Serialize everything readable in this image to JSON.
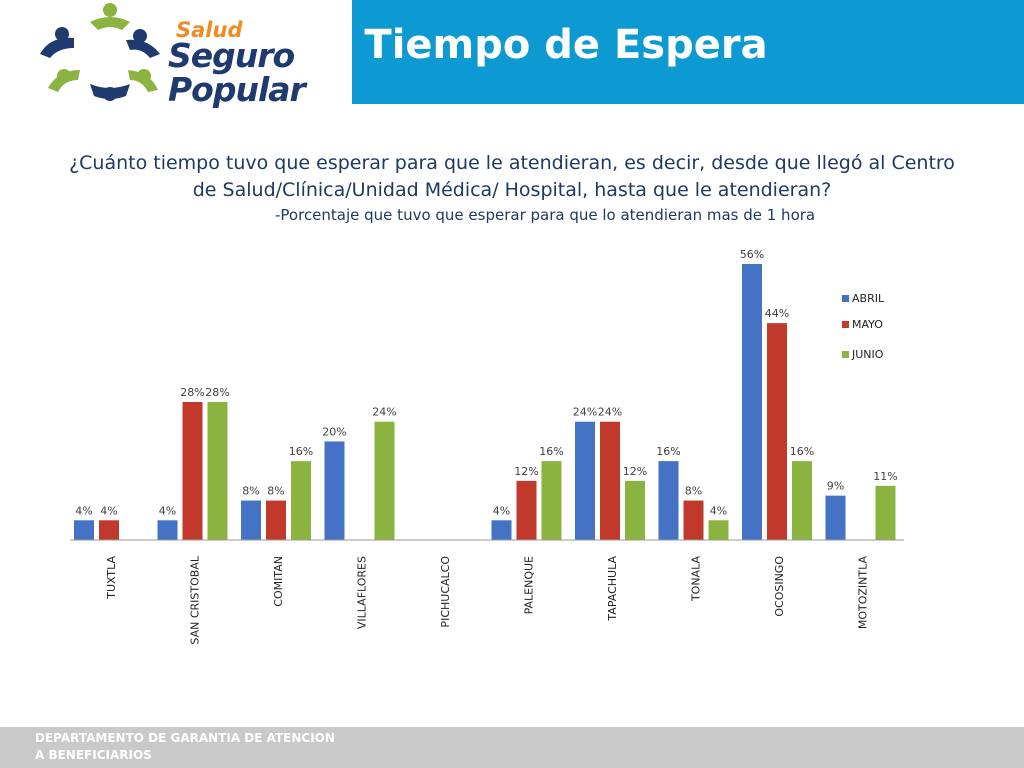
{
  "logo": {
    "salud": "Salud",
    "seguro": "Seguro",
    "popular": "Popular"
  },
  "title": "Tiempo de Espera",
  "question": "¿Cuánto tiempo  tuvo que esperar para que le atendieran, es decir, desde que llegó al Centro de Salud/Clínica/Unidad Médica/ Hospital, hasta que le atendieran?",
  "subtitle": "-Porcentaje que tuvo que esperar para que lo atendieran  mas de 1 hora",
  "footer": {
    "line1": "DEPARTAMENTO DE GARANTIA DE ATENCION",
    "line2": "A BENEFICIARIOS"
  },
  "colors": {
    "abril": "#4472c4",
    "mayo": "#c0392b",
    "junio": "#8ab43f",
    "title_bar": "#0d9ad3"
  },
  "chart_data": {
    "type": "bar",
    "categories": [
      "TUXTLA",
      "SAN CRISTOBAL",
      "COMITAN",
      "VILLAFLORES",
      "PICHUCALCO",
      "PALENQUE",
      "TAPACHULA",
      "TONALA",
      "OCOSINGO",
      "MOTOZINTLA"
    ],
    "series": [
      {
        "name": "ABRIL",
        "values": [
          4,
          4,
          8,
          20,
          null,
          4,
          24,
          16,
          56,
          9
        ]
      },
      {
        "name": "MAYO",
        "values": [
          4,
          28,
          8,
          null,
          null,
          12,
          24,
          8,
          44,
          null
        ]
      },
      {
        "name": "JUNIO",
        "values": [
          null,
          28,
          16,
          24,
          null,
          16,
          12,
          4,
          16,
          11
        ]
      }
    ],
    "unit": "%",
    "ylim": [
      0,
      56
    ],
    "legend_position": "right"
  }
}
